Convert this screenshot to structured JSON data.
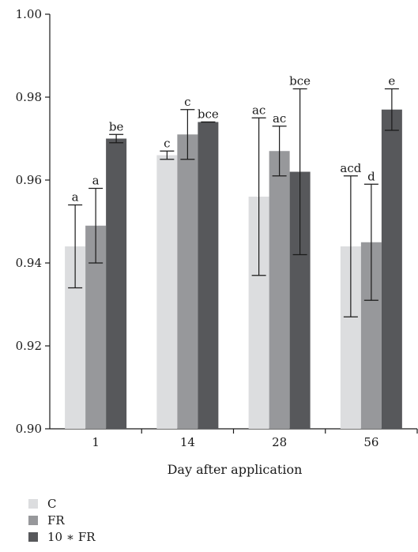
{
  "chart_data": {
    "type": "bar",
    "xlabel": "Day after application",
    "ylabel": "",
    "ylim": [
      0.9,
      1.0
    ],
    "yticks": [
      "0.90",
      "0.92",
      "0.94",
      "0.96",
      "0.98",
      "1.00"
    ],
    "categories": [
      "1",
      "14",
      "28",
      "56"
    ],
    "grid": false,
    "legend_position": "bottom-left",
    "series": [
      {
        "name": "C",
        "color": "#dcdddf",
        "values": [
          0.944,
          0.966,
          0.956,
          0.944
        ],
        "err_low": [
          0.934,
          0.965,
          0.937,
          0.927
        ],
        "err_high": [
          0.954,
          0.967,
          0.975,
          0.961
        ],
        "labels": [
          "a",
          "c",
          "ac",
          "acd"
        ]
      },
      {
        "name": "FR",
        "color": "#97989b",
        "values": [
          0.949,
          0.971,
          0.967,
          0.945
        ],
        "err_low": [
          0.94,
          0.965,
          0.961,
          0.931
        ],
        "err_high": [
          0.958,
          0.977,
          0.973,
          0.959
        ],
        "labels": [
          "a",
          "c",
          "ac",
          "d"
        ]
      },
      {
        "name": "10 ∗ FR",
        "color": "#57585b",
        "values": [
          0.97,
          0.974,
          0.962,
          0.977
        ],
        "err_low": [
          0.969,
          0.974,
          0.942,
          0.972
        ],
        "err_high": [
          0.971,
          0.974,
          0.982,
          0.982
        ],
        "labels": [
          "be",
          "bce",
          "bce",
          "e"
        ]
      }
    ]
  }
}
